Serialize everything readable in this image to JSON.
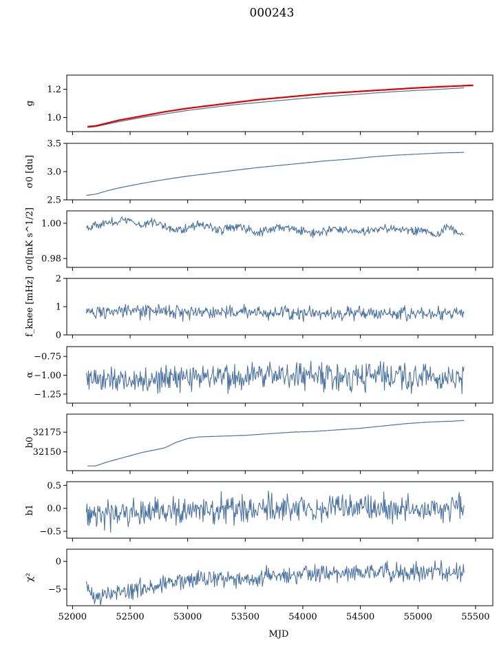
{
  "figure": {
    "title": "000243",
    "xlabel": "MJD",
    "xlim": [
      51950,
      55650
    ],
    "xticks": [
      52000,
      52500,
      53000,
      53500,
      54000,
      54500,
      55000,
      55500
    ],
    "x_start": 52120,
    "x_end": 55400,
    "colors": {
      "series": "#4c72a0",
      "overlay": "#e00000",
      "axis": "#000000"
    }
  },
  "chart_data": [
    {
      "type": "line",
      "ylabel": "g",
      "ylim": [
        0.9,
        1.3
      ],
      "yticks": [
        1.0,
        1.2
      ],
      "ytick_labels": [
        "1.0",
        "1.2"
      ],
      "series": [
        {
          "style": "smooth",
          "color": "#4c72a0",
          "width": 1.2,
          "x": [
            52130,
            52200,
            52400,
            52600,
            52800,
            53000,
            53200,
            53400,
            53600,
            53800,
            54000,
            54200,
            54400,
            54600,
            54800,
            55000,
            55200,
            55400
          ],
          "y": [
            0.93,
            0.935,
            0.97,
            1.0,
            1.025,
            1.05,
            1.07,
            1.09,
            1.105,
            1.12,
            1.135,
            1.148,
            1.16,
            1.172,
            1.183,
            1.192,
            1.2,
            1.21
          ]
        },
        {
          "style": "smooth",
          "color": "#e00000",
          "width": 2.2,
          "x": [
            52130,
            52200,
            52400,
            52600,
            52800,
            53000,
            53200,
            53400,
            53600,
            53800,
            54000,
            54200,
            54400,
            54600,
            54800,
            55000,
            55200,
            55400,
            55480
          ],
          "y": [
            0.935,
            0.94,
            0.98,
            1.01,
            1.04,
            1.065,
            1.085,
            1.105,
            1.125,
            1.14,
            1.155,
            1.17,
            1.18,
            1.19,
            1.2,
            1.21,
            1.218,
            1.225,
            1.228
          ]
        }
      ]
    },
    {
      "type": "line",
      "ylabel": "σ0 [du]",
      "ylim": [
        2.5,
        3.5
      ],
      "yticks": [
        2.5,
        3.0,
        3.5
      ],
      "ytick_labels": [
        "2.5",
        "3.0",
        "3.5"
      ],
      "series": [
        {
          "style": "smooth",
          "color": "#4c72a0",
          "width": 1.2,
          "x": [
            52120,
            52200,
            52300,
            52400,
            52600,
            52800,
            53000,
            53200,
            53400,
            53600,
            53800,
            54000,
            54200,
            54400,
            54600,
            54800,
            55000,
            55200,
            55400
          ],
          "y": [
            2.58,
            2.6,
            2.66,
            2.71,
            2.79,
            2.86,
            2.92,
            2.97,
            3.02,
            3.07,
            3.11,
            3.15,
            3.19,
            3.22,
            3.26,
            3.29,
            3.31,
            3.33,
            3.34
          ]
        }
      ]
    },
    {
      "type": "line",
      "ylabel": "σ0[mK s^1/2]",
      "ylim": [
        0.975,
        1.007
      ],
      "yticks": [
        0.98,
        1.0
      ],
      "ytick_labels": [
        "0.98",
        "1.00"
      ],
      "series": [
        {
          "style": "noisy",
          "color": "#4c72a0",
          "width": 1.1,
          "noise": 0.0012,
          "x": [
            52120,
            52300,
            52450,
            52600,
            52700,
            52850,
            52950,
            53100,
            53300,
            53450,
            53600,
            53800,
            53950,
            54100,
            54300,
            54500,
            54700,
            54900,
            55050,
            55150,
            55250,
            55400
          ],
          "y": [
            0.998,
            1.0,
            1.002,
            0.999,
            1.001,
            0.997,
            0.996,
            1.0,
            0.996,
            0.998,
            0.995,
            0.998,
            0.996,
            0.994,
            0.997,
            0.995,
            0.997,
            0.996,
            0.996,
            0.993,
            0.998,
            0.993
          ]
        }
      ]
    },
    {
      "type": "line",
      "ylabel": "f_knee [mHz]",
      "ylim": [
        0,
        2
      ],
      "yticks": [
        0,
        1,
        2
      ],
      "ytick_labels": [
        "0",
        "1",
        "2"
      ],
      "series": [
        {
          "style": "noisy",
          "color": "#4c72a0",
          "width": 1.1,
          "noise": 0.12,
          "x": [
            52120,
            52600,
            53000,
            53500,
            54000,
            54500,
            55000,
            55400
          ],
          "y": [
            0.82,
            0.82,
            0.82,
            0.8,
            0.78,
            0.77,
            0.76,
            0.76
          ]
        }
      ]
    },
    {
      "type": "line",
      "ylabel": "α",
      "ylim": [
        -1.37,
        -0.62
      ],
      "yticks": [
        -1.25,
        -1.0,
        -0.75
      ],
      "ytick_labels": [
        "−1.25",
        "−1.00",
        "−0.75"
      ],
      "series": [
        {
          "style": "noisy",
          "color": "#4c72a0",
          "width": 1.1,
          "noise": 0.09,
          "x": [
            52120,
            52600,
            53000,
            53500,
            54000,
            54500,
            55000,
            55400
          ],
          "y": [
            -1.05,
            -1.06,
            -1.03,
            -1.01,
            -1.0,
            -1.01,
            -1.02,
            -1.02
          ]
        }
      ]
    },
    {
      "type": "line",
      "ylabel": "b0",
      "ylim": [
        32126,
        32198
      ],
      "yticks": [
        32150,
        32175
      ],
      "ytick_labels": [
        "32150",
        "32175"
      ],
      "series": [
        {
          "style": "smooth",
          "color": "#4c72a0",
          "width": 1.2,
          "x": [
            52130,
            52200,
            52300,
            52450,
            52600,
            52700,
            52800,
            52900,
            53000,
            53100,
            53300,
            53500,
            53700,
            53900,
            54100,
            54300,
            54500,
            54700,
            54900,
            55100,
            55300,
            55400
          ],
          "y": [
            32132,
            32132,
            32137,
            32143,
            32149,
            32152,
            32155,
            32162,
            32167,
            32169,
            32170,
            32171,
            32173,
            32175,
            32176,
            32178,
            32180,
            32183,
            32186,
            32188,
            32189,
            32190
          ]
        }
      ]
    },
    {
      "type": "line",
      "ylabel": "b1",
      "ylim": [
        -0.65,
        0.58
      ],
      "yticks": [
        -0.5,
        0.0,
        0.5
      ],
      "ytick_labels": [
        "−0.5",
        "0.0",
        "0.5"
      ],
      "series": [
        {
          "style": "noisy",
          "color": "#4c72a0",
          "width": 1.1,
          "noise": 0.14,
          "x": [
            52120,
            52300,
            52600,
            52900,
            53200,
            53600,
            54000,
            54400,
            54800,
            55200,
            55400
          ],
          "y": [
            -0.05,
            -0.12,
            -0.1,
            -0.08,
            -0.02,
            0.0,
            0.0,
            0.02,
            0.0,
            0.03,
            0.02
          ]
        }
      ]
    },
    {
      "type": "line",
      "ylabel": "χ²",
      "ylim": [
        -8,
        2.2
      ],
      "yticks": [
        -5,
        0
      ],
      "ytick_labels": [
        "−5",
        "0"
      ],
      "series": [
        {
          "style": "noisy",
          "color": "#4c72a0",
          "width": 1.1,
          "noise": 0.8,
          "x": [
            52120,
            52200,
            52300,
            52500,
            52700,
            52900,
            53100,
            53300,
            53500,
            53700,
            53900,
            54100,
            54300,
            54500,
            54700,
            54900,
            55100,
            55400
          ],
          "y": [
            -4.5,
            -5.8,
            -6.2,
            -5.0,
            -4.4,
            -3.8,
            -3.2,
            -3.0,
            -3.4,
            -2.6,
            -2.4,
            -2.2,
            -2.0,
            -2.1,
            -1.9,
            -2.0,
            -2.0,
            -1.9
          ]
        }
      ]
    }
  ]
}
